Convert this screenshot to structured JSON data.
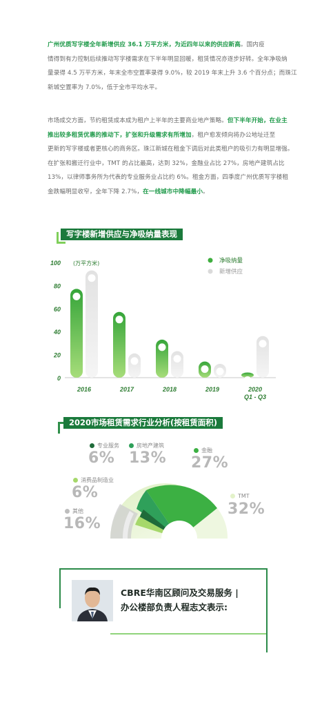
{
  "intro": {
    "lines": [
      {
        "segments": [
          {
            "t": "广州优质写字楼全年新增供应 36.1 万平方米，为近四年以来的供应新高",
            "hl": true
          },
          {
            "t": "。国内疫",
            "hl": false
          }
        ]
      },
      {
        "segments": [
          {
            "t": "情得到有力控制后续推动写字楼需求在下半年明显回暖，租赁情况亦逐步好转。全年净吸纳",
            "hl": false
          }
        ]
      },
      {
        "segments": [
          {
            "t": "量录得 4.5 万平方米，年末全市空置率录得 9.0%，较 2019 年末上升 3.6 个百分点；而珠江",
            "hl": false
          }
        ]
      },
      {
        "segments": [
          {
            "t": "新城空置率为 7.0%，低于全市平均水平。",
            "hl": false
          }
        ]
      }
    ]
  },
  "market": {
    "lines": [
      {
        "segments": [
          {
            "t": "市场成交方面，节约租赁成本成为租户上半年的主要商业地产策略。",
            "hl": false
          },
          {
            "t": "但下半年开始，在业主",
            "hl": true
          }
        ]
      },
      {
        "segments": [
          {
            "t": "推出较多租赁优惠的推动下，扩张和升级需求有所增加",
            "hl": true
          },
          {
            "t": "，租户愈发倾向将办公地址迁至",
            "hl": false
          }
        ]
      },
      {
        "segments": [
          {
            "t": "更新的写字楼或者更核心的商务区。珠江新城在租金下调后对此类租户的吸引力有明显增强。",
            "hl": false
          }
        ]
      },
      {
        "segments": [
          {
            "t": "在扩张和搬迁行业中，TMT 的占比最高，达到 32%，金融业占比 27%，房地产建筑占比",
            "hl": false
          }
        ]
      },
      {
        "segments": [
          {
            "t": "13%，以律师事务所为代表的专业服务业占比约 6%。租金方面，四季度广州优质写字楼租",
            "hl": false
          }
        ]
      },
      {
        "segments": [
          {
            "t": "金跌幅明显收窄，全年下降 2.7%，",
            "hl": false
          },
          {
            "t": "在一线城市中降幅最小",
            "hl": true
          },
          {
            "t": "。",
            "hl": false
          }
        ]
      }
    ]
  },
  "chart1": {
    "title": "写字楼新增供应与净吸纳量表现",
    "unit": "(万平方米)",
    "legend": [
      "净吸纳量",
      "新增供应"
    ],
    "colors": {
      "absorption": "#3fae3f",
      "supply": "#e0e0e0",
      "axis": "#2e7d32"
    },
    "yticks": [
      "100",
      "80",
      "60",
      "40",
      "20",
      "0"
    ]
  },
  "chart_data": {
    "type": "bar",
    "categories": [
      "2016",
      "2017",
      "2018",
      "2019",
      "2020 Q1 - Q3"
    ],
    "category_lines": [
      [
        "2016"
      ],
      [
        "2017"
      ],
      [
        "2018"
      ],
      [
        "2019"
      ],
      [
        "2020",
        "Q1 - Q3"
      ]
    ],
    "series": [
      {
        "name": "净吸纳量",
        "values": [
          77,
          57,
          33,
          14,
          4.5
        ]
      },
      {
        "name": "新增供应",
        "values": [
          93,
          21,
          23,
          12,
          36.1
        ]
      }
    ],
    "ylabel": "(万平方米)",
    "ylim": [
      0,
      100
    ]
  },
  "chart2": {
    "title": "2020市场租赁需求行业分析(按租赁面积)",
    "items": [
      {
        "label": "专业服务",
        "pct": "6%",
        "color": "#1f6b3a"
      },
      {
        "label": "房地产建筑",
        "pct": "13%",
        "color": "#2fa05a"
      },
      {
        "label": "金融",
        "pct": "27%",
        "color": "#3cb043"
      },
      {
        "label": "消费品制造业",
        "pct": "6%",
        "color": "#a6d86b"
      },
      {
        "label": "其他",
        "pct": "16%",
        "color": "#bdbdbd"
      },
      {
        "label": "TMT",
        "pct": "32%",
        "color": "#e3f2c9"
      }
    ]
  },
  "quote": {
    "speaker_line1": "CBRE华南区顾问及交易服务 |",
    "speaker_line2": "办公楼部负责人程志文表示:"
  }
}
